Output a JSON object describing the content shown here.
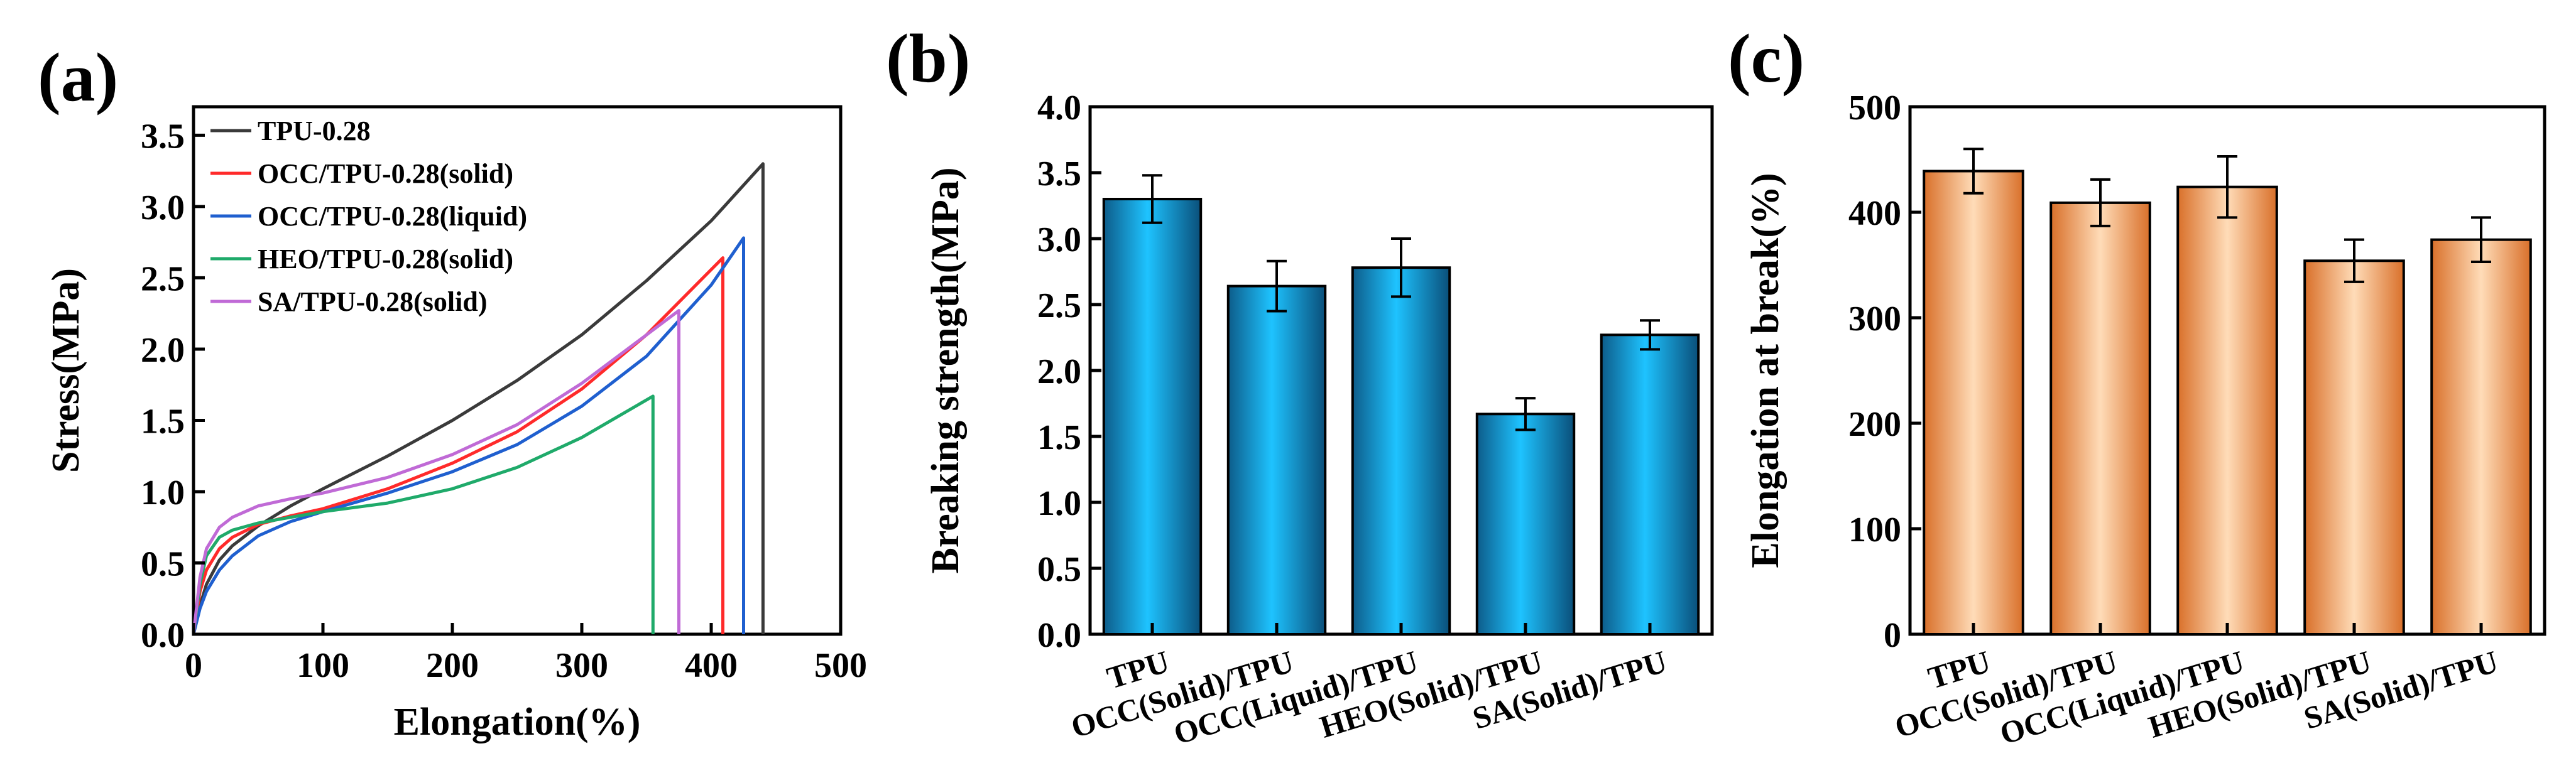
{
  "panels": [
    {
      "label": "(a)",
      "chart_data": {
        "type": "line",
        "xlabel": "Elongation(%)",
        "ylabel": "Stress(MPa)",
        "xlim": [
          0,
          500
        ],
        "ylim": [
          0,
          3.7
        ],
        "xticks": [
          0,
          100,
          200,
          300,
          400,
          500
        ],
        "xtick_labels": [
          "0",
          "100",
          "200",
          "300",
          "400",
          "500"
        ],
        "yticks": [
          0,
          0.5,
          1.0,
          1.5,
          2.0,
          2.5,
          3.0,
          3.5
        ],
        "ytick_labels": [
          "0.0",
          "0.5",
          "1.0",
          "1.5",
          "2.0",
          "2.5",
          "3.0",
          "3.5"
        ],
        "legend_position": "top-left",
        "series": [
          {
            "name": "TPU-0.28",
            "color": "#3a3a3a",
            "break_x": 440,
            "x": [
              0,
              5,
              10,
              20,
              30,
              50,
              75,
              100,
              150,
              200,
              250,
              300,
              350,
              400,
              440
            ],
            "y": [
              0,
              0.2,
              0.35,
              0.52,
              0.62,
              0.76,
              0.9,
              1.02,
              1.25,
              1.5,
              1.78,
              2.1,
              2.48,
              2.9,
              3.3
            ]
          },
          {
            "name": "OCC/TPU-0.28(solid)",
            "color": "#ff2a2a",
            "break_x": 409,
            "x": [
              0,
              5,
              10,
              20,
              30,
              50,
              75,
              100,
              150,
              200,
              250,
              300,
              350,
              409
            ],
            "y": [
              0,
              0.3,
              0.45,
              0.6,
              0.68,
              0.77,
              0.83,
              0.88,
              1.02,
              1.2,
              1.42,
              1.72,
              2.1,
              2.64
            ]
          },
          {
            "name": "OCC/TPU-0.28(liquid)",
            "color": "#1f5fcf",
            "break_x": 425,
            "x": [
              0,
              5,
              10,
              20,
              30,
              50,
              75,
              100,
              150,
              200,
              250,
              300,
              350,
              400,
              425
            ],
            "y": [
              0,
              0.18,
              0.3,
              0.45,
              0.55,
              0.69,
              0.79,
              0.86,
              0.99,
              1.14,
              1.33,
              1.6,
              1.95,
              2.45,
              2.78
            ]
          },
          {
            "name": "HEO/TPU-0.28(solid)",
            "color": "#1faa6a",
            "break_x": 355,
            "x": [
              0,
              5,
              10,
              20,
              30,
              50,
              75,
              100,
              150,
              200,
              250,
              300,
              355
            ],
            "y": [
              0,
              0.35,
              0.55,
              0.68,
              0.73,
              0.78,
              0.82,
              0.86,
              0.92,
              1.02,
              1.17,
              1.38,
              1.67
            ]
          },
          {
            "name": "SA/TPU-0.28(solid)",
            "color": "#c06ad6",
            "break_x": 375,
            "x": [
              0,
              5,
              10,
              20,
              30,
              50,
              75,
              100,
              150,
              200,
              250,
              300,
              350,
              375
            ],
            "y": [
              0,
              0.4,
              0.6,
              0.75,
              0.82,
              0.9,
              0.95,
              0.99,
              1.1,
              1.26,
              1.47,
              1.76,
              2.1,
              2.27
            ]
          }
        ]
      }
    },
    {
      "label": "(b)",
      "chart_data": {
        "type": "bar",
        "xlabel": "",
        "ylabel": "Breaking strength(MPa)",
        "ylim": [
          0,
          4.0
        ],
        "yticks": [
          0,
          0.5,
          1.0,
          1.5,
          2.0,
          2.5,
          3.0,
          3.5,
          4.0
        ],
        "ytick_labels": [
          "0.0",
          "0.5",
          "1.0",
          "1.5",
          "2.0",
          "2.5",
          "3.0",
          "3.5",
          "4.0"
        ],
        "categories": [
          "TPU",
          "OCC(Solid)/TPU",
          "OCC(Liquid)/TPU",
          "HEO(Solid)/TPU",
          "SA(Solid)/TPU"
        ],
        "values": [
          3.3,
          2.64,
          2.78,
          1.67,
          2.27
        ],
        "errors": [
          0.18,
          0.19,
          0.22,
          0.12,
          0.11
        ],
        "colors": {
          "light": "#1ec3ff",
          "dark": "#0d5c8a"
        }
      }
    },
    {
      "label": "(c)",
      "chart_data": {
        "type": "bar",
        "xlabel": "",
        "ylabel": "Elongation at break(%)",
        "ylim": [
          0,
          500
        ],
        "yticks": [
          0,
          100,
          200,
          300,
          400,
          500
        ],
        "ytick_labels": [
          "0",
          "100",
          "200",
          "300",
          "400",
          "500"
        ],
        "categories": [
          "TPU",
          "OCC(Solid)/TPU",
          "OCC(Liquid)/TPU",
          "HEO(Solid)/TPU",
          "SA(Solid)/TPU"
        ],
        "values": [
          439,
          409,
          424,
          354,
          374
        ],
        "errors": [
          21,
          22,
          29,
          20,
          21
        ],
        "colors": {
          "light": "#ffdcb8",
          "dark": "#d9702a"
        }
      }
    }
  ]
}
